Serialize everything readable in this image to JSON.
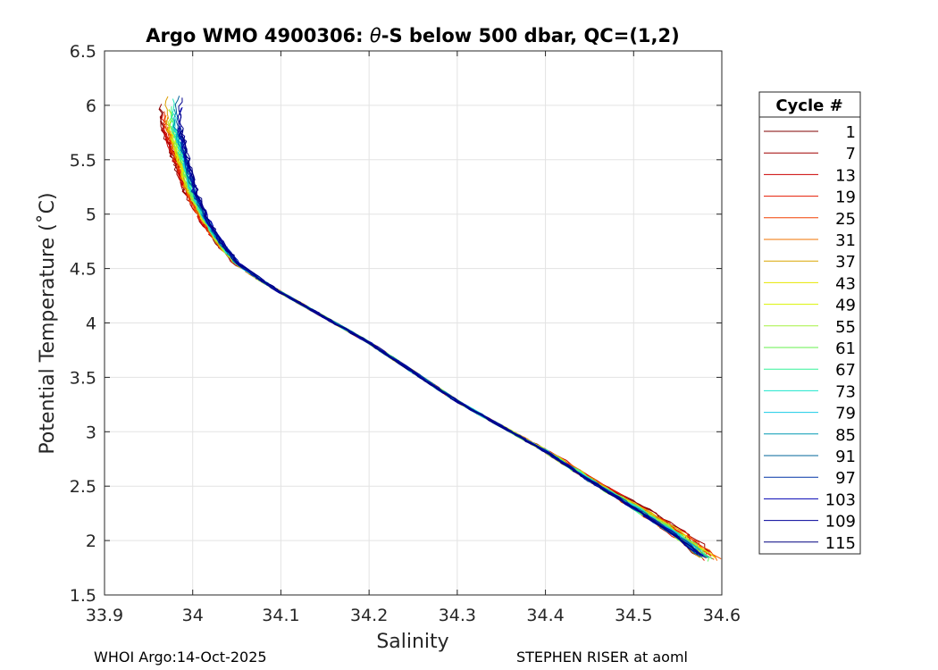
{
  "chart_data": {
    "type": "line",
    "title_prefix": "Argo WMO 4900306: ",
    "title_theta": "θ",
    "title_suffix": "-S below 500 dbar,  QC=(1,2)",
    "xlabel": "Salinity",
    "ylabel": "Potential Temperature (˚C)",
    "xlim": [
      33.9,
      34.6
    ],
    "ylim": [
      1.5,
      6.5
    ],
    "xticks": [
      "33.9",
      "34",
      "34.1",
      "34.2",
      "34.3",
      "34.4",
      "34.5",
      "34.6"
    ],
    "yticks": [
      "1.5",
      "2",
      "2.5",
      "3",
      "3.5",
      "4",
      "4.5",
      "5",
      "5.5",
      "6",
      "6.5"
    ],
    "grid": true,
    "legend_position": "right",
    "legend_title": "Cycle #",
    "legend": [
      {
        "label": "1",
        "color": "#800000"
      },
      {
        "label": "7",
        "color": "#a00000"
      },
      {
        "label": "13",
        "color": "#cc0000"
      },
      {
        "label": "19",
        "color": "#e61a00"
      },
      {
        "label": "25",
        "color": "#f24000"
      },
      {
        "label": "31",
        "color": "#f27300"
      },
      {
        "label": "37",
        "color": "#d9a600"
      },
      {
        "label": "43",
        "color": "#e6e600"
      },
      {
        "label": "49",
        "color": "#d9f200"
      },
      {
        "label": "55",
        "color": "#a6f240"
      },
      {
        "label": "61",
        "color": "#66f24d"
      },
      {
        "label": "67",
        "color": "#33f299"
      },
      {
        "label": "73",
        "color": "#1ae6cc"
      },
      {
        "label": "79",
        "color": "#19cce6"
      },
      {
        "label": "85",
        "color": "#0099b3"
      },
      {
        "label": "91",
        "color": "#006699"
      },
      {
        "label": "97",
        "color": "#0033a6"
      },
      {
        "label": "103",
        "color": "#0000b3"
      },
      {
        "label": "109",
        "color": "#000099"
      },
      {
        "label": "115",
        "color": "#000080"
      }
    ],
    "mean_profile": [
      {
        "s": 33.98,
        "t": 5.8
      },
      {
        "s": 33.99,
        "t": 5.5
      },
      {
        "s": 34.0,
        "t": 5.2
      },
      {
        "s": 34.015,
        "t": 4.95
      },
      {
        "s": 34.03,
        "t": 4.75
      },
      {
        "s": 34.05,
        "t": 4.55
      },
      {
        "s": 34.08,
        "t": 4.38
      },
      {
        "s": 34.1,
        "t": 4.28
      },
      {
        "s": 34.15,
        "t": 4.05
      },
      {
        "s": 34.2,
        "t": 3.82
      },
      {
        "s": 34.25,
        "t": 3.55
      },
      {
        "s": 34.3,
        "t": 3.28
      },
      {
        "s": 34.35,
        "t": 3.05
      },
      {
        "s": 34.4,
        "t": 2.82
      },
      {
        "s": 34.45,
        "t": 2.55
      },
      {
        "s": 34.5,
        "t": 2.3
      },
      {
        "s": 34.55,
        "t": 2.03
      },
      {
        "s": 34.58,
        "t": 1.83
      }
    ],
    "cycles_drawn": 40
  },
  "footer": {
    "left": "WHOI Argo:14-Oct-2025",
    "right": "STEPHEN RISER at aoml"
  }
}
